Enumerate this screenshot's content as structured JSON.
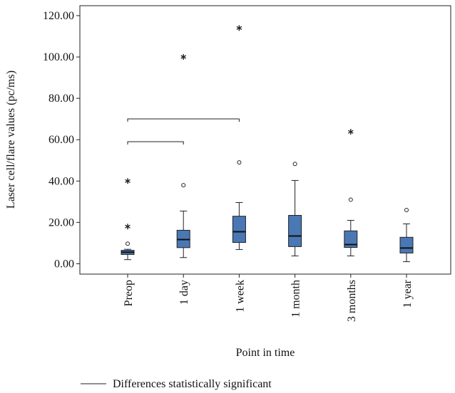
{
  "chart_data": {
    "type": "box",
    "x_label": "Point in time",
    "y_label": "Laser cell/flare values (pc/ms)",
    "categories": [
      "Preop",
      "1 day",
      "1 week",
      "1 month",
      "3 months",
      "1 year"
    ],
    "color": "#4a78b5",
    "boxes": [
      {
        "min": 2,
        "q1": 4.5,
        "median": 5.6,
        "q3": 6.5,
        "max": 7,
        "outliers": [
          9.7
        ],
        "extremes": [
          18,
          40
        ]
      },
      {
        "min": 3,
        "q1": 7.8,
        "median": 11.7,
        "q3": 16.2,
        "max": 25.5,
        "outliers": [
          38
        ],
        "extremes": [
          100
        ]
      },
      {
        "min": 6.9,
        "q1": 10.3,
        "median": 15.5,
        "q3": 23,
        "max": 29.6,
        "outliers": [
          49
        ],
        "extremes": [
          114
        ]
      },
      {
        "min": 3.8,
        "q1": 8.3,
        "median": 13.4,
        "q3": 23.4,
        "max": 40.3,
        "outliers": [
          48.3
        ],
        "extremes": []
      },
      {
        "min": 3.8,
        "q1": 7.9,
        "median": 9.3,
        "q3": 15.9,
        "max": 21,
        "outliers": [
          31
        ],
        "extremes": [
          63.8
        ]
      },
      {
        "min": 1,
        "q1": 5.2,
        "median": 7.6,
        "q3": 12.8,
        "max": 19.3,
        "outliers": [
          26
        ],
        "extremes": []
      }
    ],
    "ylim": [
      -5,
      124.8
    ],
    "yticks": [
      {
        "value": 0,
        "label": "0.00"
      },
      {
        "value": 20,
        "label": "20.00"
      },
      {
        "value": 40,
        "label": "40.00"
      },
      {
        "value": 60,
        "label": "60.00"
      },
      {
        "value": 80,
        "label": "80.00"
      },
      {
        "value": 100,
        "label": "100.00"
      },
      {
        "value": 120,
        "label": "120.00"
      }
    ],
    "significance": [
      {
        "from": 0,
        "to": 1
      },
      {
        "from": 0,
        "to": 2
      }
    ],
    "legend": "Differences statistically significant"
  }
}
